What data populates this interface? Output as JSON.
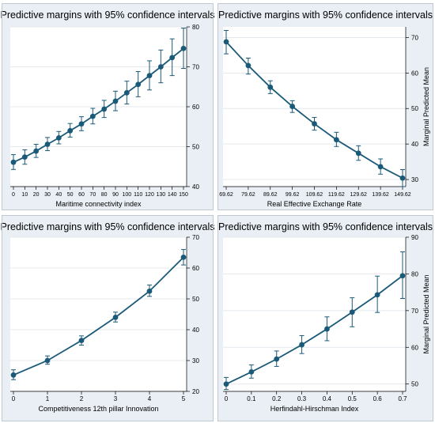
{
  "colors": {
    "series": "#1a5a78",
    "panel_bg": "#e9eff5",
    "plot_bg": "#ffffff"
  },
  "chart_data": [
    {
      "type": "line",
      "title": "Predictive margins with 95% confidence intervals",
      "xlabel": "Maritime connectivity index",
      "ylabel": "",
      "x": [
        0,
        10,
        20,
        30,
        40,
        50,
        60,
        70,
        80,
        90,
        100,
        110,
        120,
        130,
        140,
        150
      ],
      "series": [
        {
          "values": [
            46.1,
            47.4,
            48.9,
            50.6,
            52.2,
            54.0,
            55.7,
            57.6,
            59.4,
            61.4,
            63.5,
            65.6,
            67.8,
            70.0,
            72.3,
            74.6
          ],
          "ci_low": [
            44.3,
            45.6,
            47.3,
            49.0,
            50.7,
            52.4,
            54.0,
            55.7,
            57.3,
            59.0,
            60.7,
            62.5,
            64.2,
            66.0,
            67.8,
            69.6
          ],
          "ci_high": [
            48.0,
            49.2,
            50.6,
            52.3,
            53.8,
            55.8,
            57.5,
            59.6,
            61.6,
            63.9,
            66.4,
            68.8,
            71.5,
            74.2,
            77.0,
            79.7
          ]
        }
      ],
      "xticks": [
        "0",
        "10",
        "20",
        "30",
        "40",
        "50",
        "60",
        "70",
        "80",
        "90",
        "100",
        "110",
        "120",
        "130",
        "140",
        "150"
      ],
      "yticks": [
        "40",
        "50",
        "60",
        "70",
        "80"
      ],
      "xlim": [
        0,
        150
      ],
      "ylim": [
        40,
        80
      ],
      "y_axis_side": "right",
      "grid": true
    },
    {
      "type": "line",
      "title": "Predictive margins with 95% confidence intervals",
      "xlabel": "Real Effective Exchange Rate",
      "ylabel": "Marginal Predicted Mean",
      "x": [
        69.62,
        79.62,
        89.62,
        99.62,
        109.62,
        119.62,
        129.62,
        139.62,
        149.62
      ],
      "series": [
        {
          "values": [
            68.8,
            62.1,
            56.0,
            50.6,
            45.7,
            41.2,
            37.4,
            33.6,
            30.4
          ],
          "ci_low": [
            65.4,
            59.7,
            54.2,
            48.9,
            43.9,
            39.3,
            35.4,
            31.5,
            28.0
          ],
          "ci_high": [
            72.0,
            64.2,
            57.8,
            52.2,
            47.5,
            43.3,
            39.5,
            35.8,
            32.8
          ]
        }
      ],
      "xticks": [
        "69.62",
        "79.62",
        "89.62",
        "99.62",
        "109.62",
        "119.62",
        "129.62",
        "139.62",
        "149.62"
      ],
      "yticks": [
        "30",
        "40",
        "50",
        "60",
        "70"
      ],
      "xlim": [
        69.62,
        149.62
      ],
      "ylim": [
        28,
        73
      ],
      "y_axis_side": "right",
      "grid": true
    },
    {
      "type": "line",
      "title": "Predictive margins with 95% confidence intervals",
      "xlabel": "Competitiveness 12th pillar Innovation",
      "ylabel": "",
      "x": [
        0,
        1,
        2,
        3,
        4,
        5
      ],
      "series": [
        {
          "values": [
            25.3,
            30.0,
            36.5,
            44.0,
            52.5,
            63.5
          ],
          "ci_low": [
            23.8,
            28.8,
            35.0,
            42.5,
            50.8,
            61.0
          ],
          "ci_high": [
            27.0,
            31.5,
            38.0,
            45.7,
            54.5,
            66.0
          ]
        }
      ],
      "xticks": [
        "0",
        "1",
        "2",
        "3",
        "4",
        "5"
      ],
      "yticks": [
        "20",
        "30",
        "40",
        "50",
        "60",
        "70"
      ],
      "xlim": [
        0,
        5
      ],
      "ylim": [
        20,
        70
      ],
      "y_axis_side": "right",
      "grid": true
    },
    {
      "type": "line",
      "title": "Predictive margins with 95% confidence intervals",
      "xlabel": "Herfindahl-Hirschman Index",
      "ylabel": "Marginal Predicted Mean",
      "x": [
        0,
        0.1,
        0.2,
        0.3,
        0.4,
        0.5,
        0.6,
        0.7
      ],
      "series": [
        {
          "values": [
            50.0,
            53.3,
            56.8,
            60.7,
            65.0,
            69.6,
            74.3,
            79.5
          ],
          "ci_low": [
            48.5,
            51.6,
            54.8,
            58.3,
            61.8,
            65.6,
            69.5,
            73.3
          ],
          "ci_high": [
            51.8,
            55.2,
            59.0,
            63.2,
            68.3,
            73.5,
            79.4,
            86.0
          ]
        }
      ],
      "xticks": [
        "0",
        "0.1",
        "0.2",
        "0.3",
        "0.4",
        "0.5",
        "0.6",
        "0.7"
      ],
      "yticks": [
        "50",
        "60",
        "70",
        "80",
        "90"
      ],
      "xlim": [
        0,
        0.7
      ],
      "ylim": [
        48,
        90
      ],
      "y_axis_side": "right",
      "grid": true
    }
  ]
}
